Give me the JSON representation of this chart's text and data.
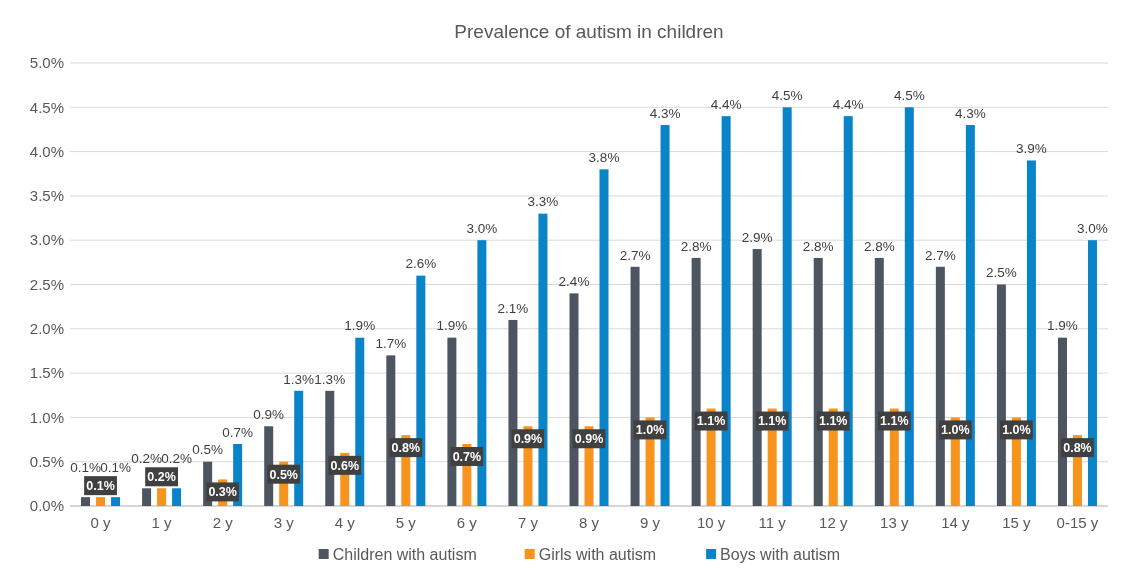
{
  "chart_data": {
    "type": "bar",
    "title": "Prevalence of autism in children",
    "categories": [
      "0 y",
      "1 y",
      "2 y",
      "3 y",
      "4 y",
      "5 y",
      "6 y",
      "7 y",
      "8 y",
      "9 y",
      "10 y",
      "11 y",
      "12 y",
      "13 y",
      "14 y",
      "15 y",
      "0-15 y"
    ],
    "series": [
      {
        "name": "Children with autism",
        "color": "#4d5660",
        "values": [
          0.1,
          0.2,
          0.5,
          0.9,
          1.3,
          1.7,
          1.9,
          2.1,
          2.4,
          2.7,
          2.8,
          2.9,
          2.8,
          2.8,
          2.7,
          2.5,
          1.9
        ],
        "value_labels": [
          "0.1%",
          "0.2%",
          "0.5%",
          "0.9%",
          "1.3%",
          "1.7%",
          "1.9%",
          "2.1%",
          "2.4%",
          "2.7%",
          "2.8%",
          "2.9%",
          "2.8%",
          "2.8%",
          "2.7%",
          "2.5%",
          "1.9%"
        ]
      },
      {
        "name": "Girls with autism",
        "color": "#f7941d",
        "values": [
          0.1,
          0.2,
          0.3,
          0.5,
          0.6,
          0.8,
          0.7,
          0.9,
          0.9,
          1.0,
          1.1,
          1.1,
          1.1,
          1.1,
          1.0,
          1.0,
          0.8
        ],
        "value_labels": [
          "0.1%",
          "0.2%",
          "0.3%",
          "0.5%",
          "0.6%",
          "0.8%",
          "0.7%",
          "0.9%",
          "0.9%",
          "1.0%",
          "1.1%",
          "1.1%",
          "1.1%",
          "1.1%",
          "1.0%",
          "1.0%",
          "0.8%"
        ]
      },
      {
        "name": "Boys with autism",
        "color": "#0a84c8",
        "values": [
          0.1,
          0.2,
          0.7,
          1.3,
          1.9,
          2.6,
          3.0,
          3.3,
          3.8,
          4.3,
          4.4,
          4.5,
          4.4,
          4.5,
          4.3,
          3.9,
          3.0
        ],
        "value_labels": [
          "0.1%",
          "0.2%",
          "0.7%",
          "1.3%",
          "1.9%",
          "2.6%",
          "3.0%",
          "3.3%",
          "3.8%",
          "4.3%",
          "4.4%",
          "4.5%",
          "4.4%",
          "4.5%",
          "4.3%",
          "3.9%",
          "3.0%"
        ]
      }
    ],
    "ylim": [
      0,
      5
    ],
    "yticks": [
      {
        "value": 0,
        "label": "0.0%"
      },
      {
        "value": 0.5,
        "label": "0.5%"
      },
      {
        "value": 1,
        "label": "1.0%"
      },
      {
        "value": 1.5,
        "label": "1.5%"
      },
      {
        "value": 2,
        "label": "2.0%"
      },
      {
        "value": 2.5,
        "label": "2.5%"
      },
      {
        "value": 3,
        "label": "3.0%"
      },
      {
        "value": 3.5,
        "label": "3.5%"
      },
      {
        "value": 4,
        "label": "4.0%"
      },
      {
        "value": 4.5,
        "label": "4.5%"
      },
      {
        "value": 5,
        "label": "5.0%"
      }
    ],
    "grid": "y",
    "legend": "bottom"
  }
}
